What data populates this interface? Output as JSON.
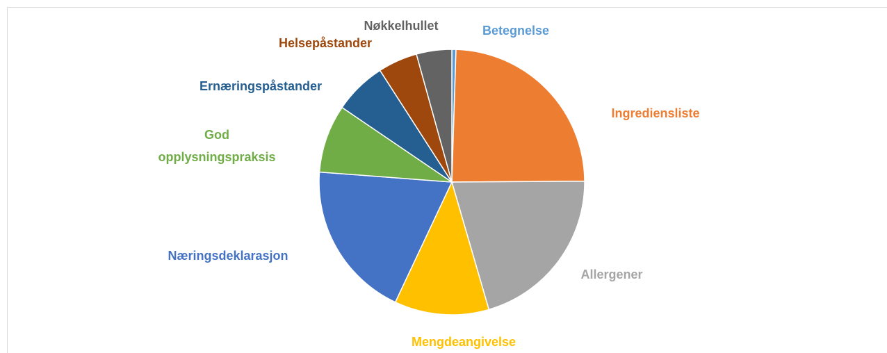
{
  "chart_data": {
    "type": "pie",
    "categories": [
      "Betegnelse",
      "Ingrediensliste",
      "Allergener",
      "Mengdeangivelse",
      "Næringsdeklarasjon",
      "God opplysningspraksis",
      "Ernæringspåstander",
      "Helsepåstander",
      "Nøkkelhullet"
    ],
    "values": [
      0.5,
      24.4,
      20.6,
      11.5,
      19.2,
      8.3,
      6.4,
      4.8,
      4.3
    ],
    "colors": [
      "#5b9bd5",
      "#ed7d31",
      "#a5a5a5",
      "#ffc000",
      "#4472c4",
      "#70ad47",
      "#255e91",
      "#9e480e",
      "#636363"
    ]
  }
}
